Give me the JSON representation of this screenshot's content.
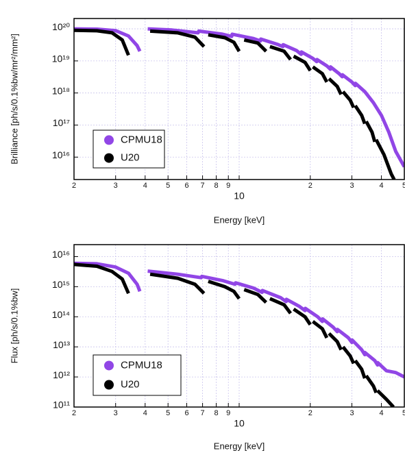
{
  "chart_data": [
    {
      "type": "line",
      "xlabel": "Energy [keV]",
      "ylabel": "Brilliance [ph/s/0.1%bw/mr²/mm²]",
      "log_x": true,
      "log_y": true,
      "grid": true,
      "legend": "lower left",
      "xlim": [
        2,
        50
      ],
      "ylim": [
        2000000000000000.0,
        2.1e+20
      ],
      "xticks": [
        2,
        3,
        4,
        5,
        6,
        7,
        8,
        9,
        10,
        {
          "value": 20,
          "label": "2"
        },
        {
          "value": 30,
          "label": "3"
        },
        {
          "value": 40,
          "label": "4"
        },
        {
          "value": 50,
          "label": "5"
        }
      ],
      "yticks": [
        {
          "value": 1e+16,
          "label": "10¹⁶"
        },
        {
          "value": 1e+17,
          "label": "10¹⁷"
        },
        {
          "value": 1e+18,
          "label": "10¹⁸"
        },
        {
          "value": 1e+19,
          "label": "10¹⁹"
        },
        {
          "value": 1e+20,
          "label": "10²⁰"
        }
      ],
      "series": [
        {
          "name": "CPMU18",
          "color": "#9146e6",
          "x": [
            2,
            2.5,
            3.0,
            3.4,
            3.7,
            3.8,
            3.9,
            4.1,
            5.2,
            6.7,
            6.75,
            8.5,
            9.3,
            9.35,
            11.5,
            12.3,
            12.35,
            14.5,
            15.3,
            15.35,
            17.5,
            18.3,
            18.35,
            20.5,
            21.3,
            21.35,
            23.5,
            24.3,
            24.35,
            26.5,
            27.3,
            27.35,
            30,
            31,
            31.05,
            34,
            37,
            40,
            43,
            46,
            50
          ],
          "values": [
            1e+20,
            9.8e+19,
            8.8e+19,
            6e+19,
            3e+19,
            2e+19,
            null,
            1e+20,
            9.2e+19,
            7.5e+19,
            8.5e+19,
            6.8e+19,
            5.8e+19,
            6.8e+19,
            5e+19,
            4.2e+19,
            4.8e+19,
            3.3e+19,
            2.8e+19,
            3.2e+19,
            2.1e+19,
            1.6e+19,
            1.9e+19,
            1.2e+19,
            9.5e+18,
            1.1e+19,
            7e+18,
            5.5e+18,
            6.5e+18,
            4e+18,
            3.2e+18,
            3.7e+18,
            2.2e+18,
            1.7e+18,
            2e+18,
            1.1e+18,
            5e+17,
            2e+17,
            6e+16,
            1.5e+16,
            5000000000000000.0
          ]
        },
        {
          "name": "U20",
          "color": "#000000",
          "x": [
            2,
            2.5,
            2.9,
            3.2,
            3.4,
            3.8,
            4.2,
            5.5,
            6.5,
            7.1,
            7.2,
            7.4,
            8.7,
            9.5,
            10,
            10.2,
            10.5,
            12,
            13,
            13.2,
            13.5,
            15.5,
            16.5,
            16.7,
            17,
            19,
            20,
            20.2,
            20.5,
            22.5,
            23.5,
            23.7,
            24,
            26,
            27,
            27.2,
            27.5,
            29.5,
            30.5,
            30.7,
            31,
            33,
            34,
            34.2,
            34.5,
            36.5,
            37.5,
            37.7,
            38,
            41,
            44,
            45.3
          ],
          "values": [
            9e+19,
            8.7e+19,
            7.5e+19,
            4.5e+19,
            1.5e+19,
            null,
            8.5e+19,
            7.5e+19,
            5.5e+19,
            2.8e+19,
            null,
            6.5e+19,
            5.3e+19,
            3.8e+19,
            2e+19,
            null,
            4.5e+19,
            3.6e+19,
            2e+19,
            null,
            2.8e+19,
            2e+19,
            1.1e+19,
            null,
            1.4e+19,
            9e+18,
            5e+18,
            null,
            6.5e+18,
            4e+18,
            2.2e+18,
            null,
            2.8e+18,
            1.6e+18,
            9e+17,
            null,
            1.1e+18,
            6e+17,
            3.5e+17,
            null,
            4e+17,
            2e+17,
            1.1e+17,
            null,
            1.3e+17,
            6e+16,
            3e+16,
            null,
            3.5e+16,
            1.2e+16,
            3000000000000000.0,
            2000000000000000.0
          ]
        }
      ]
    },
    {
      "type": "line",
      "xlabel": "Energy [keV]",
      "ylabel": "Flux [ph/s/0.1%bw]",
      "log_x": true,
      "log_y": true,
      "grid": true,
      "legend": "lower left",
      "xlim": [
        2,
        50
      ],
      "ylim": [
        100000000000.0,
        2.5e+16
      ],
      "xticks": [
        2,
        3,
        4,
        5,
        6,
        7,
        8,
        9,
        10,
        {
          "value": 20,
          "label": "2"
        },
        {
          "value": 30,
          "label": "3"
        },
        {
          "value": 40,
          "label": "4"
        },
        {
          "value": 50,
          "label": "5"
        }
      ],
      "yticks": [
        {
          "value": 100000000000.0,
          "label": "10¹¹"
        },
        {
          "value": 1000000000000.0,
          "label": "10¹²"
        },
        {
          "value": 10000000000000.0,
          "label": "10¹³"
        },
        {
          "value": 100000000000000.0,
          "label": "10¹⁴"
        },
        {
          "value": 1000000000000000.0,
          "label": "10¹⁵"
        },
        {
          "value": 1e+16,
          "label": "10¹⁶"
        }
      ],
      "series": [
        {
          "name": "CPMU18",
          "color": "#9146e6",
          "x": [
            2,
            2.5,
            3,
            3.4,
            3.7,
            3.8,
            3.9,
            4.1,
            5.5,
            6.9,
            6.95,
            8.5,
            9.6,
            9.65,
            11.5,
            12.5,
            12.55,
            15,
            15.8,
            15.85,
            18,
            19,
            19.05,
            21.5,
            22.5,
            22.55,
            25,
            26,
            26.05,
            29,
            30,
            30.05,
            33,
            34,
            34.05,
            37.5,
            38.5,
            38.55,
            42,
            46,
            50
          ],
          "values": [
            6000000000000000.0,
            5800000000000000.0,
            4500000000000000.0,
            2800000000000000.0,
            1200000000000000.0,
            700000000000000.0,
            null,
            3300000000000000.0,
            2600000000000000.0,
            2000000000000000.0,
            2200000000000000.0,
            1600000000000000.0,
            1200000000000000.0,
            1350000000000000.0,
            900000000000000.0,
            650000000000000.0,
            750000000000000.0,
            430000000000000.0,
            320000000000000.0,
            380000000000000.0,
            220000000000000.0,
            160000000000000.0,
            190000000000000.0,
            100000000000000.0,
            70000000000000.0,
            85000000000000.0,
            45000000000000.0,
            32000000000000.0,
            38000000000000.0,
            20000000000000.0,
            14000000000000.0,
            17000000000000.0,
            8000000000000.0,
            5500000000000.0,
            6500000000000.0,
            3500000000000.0,
            2500000000000.0,
            3000000000000.0,
            1600000000000.0,
            1400000000000.0,
            1000000000000.0
          ]
        },
        {
          "name": "U20",
          "color": "#000000",
          "x": [
            2,
            2.5,
            2.9,
            3.2,
            3.4,
            3.8,
            4.2,
            5.5,
            6.5,
            7.1,
            7.2,
            7.4,
            8.7,
            9.5,
            10,
            10.2,
            10.5,
            12,
            13,
            13.2,
            13.5,
            15.5,
            16.5,
            16.7,
            17,
            19,
            20,
            20.2,
            20.5,
            22.5,
            23.5,
            23.7,
            24,
            26,
            27,
            27.2,
            27.5,
            29.5,
            30.5,
            30.7,
            31,
            33,
            34,
            34.2,
            34.5,
            37,
            38,
            38.2,
            38.5,
            42,
            45
          ],
          "values": [
            5500000000000000.0,
            4800000000000000.0,
            3200000000000000.0,
            1800000000000000.0,
            600000000000000.0,
            null,
            2600000000000000.0,
            1900000000000000.0,
            1200000000000000.0,
            600000000000000.0,
            null,
            1500000000000000.0,
            1000000000000000.0,
            700000000000000.0,
            400000000000000.0,
            null,
            800000000000000.0,
            550000000000000.0,
            300000000000000.0,
            null,
            400000000000000.0,
            250000000000000.0,
            130000000000000.0,
            null,
            180000000000000.0,
            100000000000000.0,
            55000000000000.0,
            null,
            70000000000000.0,
            40000000000000.0,
            20000000000000.0,
            null,
            28000000000000.0,
            15000000000000.0,
            8000000000000.0,
            null,
            10000000000000.0,
            5000000000000.0,
            2800000000000.0,
            null,
            3500000000000.0,
            1800000000000.0,
            900000000000.0,
            null,
            1100000000000.0,
            500000000000.0,
            300000000000.0,
            null,
            350000000000.0,
            180000000000.0,
            100000000000.0
          ]
        }
      ]
    }
  ]
}
